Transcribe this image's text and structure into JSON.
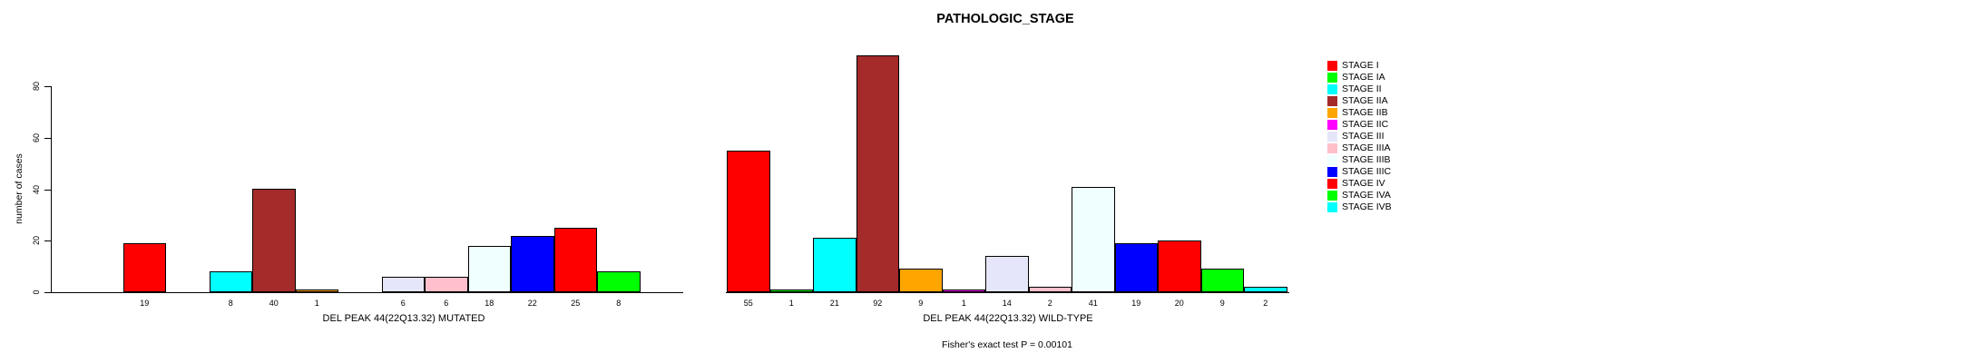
{
  "chart_data": {
    "type": "bar",
    "title": "PATHOLOGIC_STAGE",
    "ylabel": "number of cases",
    "xlabel": "",
    "ylim": [
      0,
      80
    ],
    "yticks": [
      0,
      20,
      40,
      60,
      80
    ],
    "grid": false,
    "legend_position": "right",
    "bar_border_color": "#000000",
    "categories": [
      "STAGE I",
      "STAGE IA",
      "STAGE II",
      "STAGE IIA",
      "STAGE IIB",
      "STAGE IIC",
      "STAGE III",
      "STAGE IIIA",
      "STAGE IIIB",
      "STAGE IIIC",
      "STAGE IV",
      "STAGE IVA",
      "STAGE IVB"
    ],
    "series_colors": [
      "#FF0000",
      "#00FF00",
      "#00FFFF",
      "#A52A2A",
      "#FFA500",
      "#FF00FF",
      "#E6E6FA",
      "#FFC0CB",
      "#F0FFFF",
      "#0000FF",
      "#FF0000",
      "#00FF00",
      "#00FFFF"
    ],
    "groups": [
      {
        "label": "DEL PEAK 44(22Q13.32) MUTATED",
        "values": [
          19,
          0,
          8,
          40,
          1,
          0,
          6,
          6,
          18,
          22,
          25,
          8,
          0
        ]
      },
      {
        "label": "DEL PEAK 44(22Q13.32) WILD-TYPE",
        "values": [
          55,
          1,
          21,
          92,
          9,
          1,
          14,
          2,
          41,
          19,
          20,
          9,
          2
        ]
      }
    ],
    "footnote": "Fisher's exact test P = 0.00101"
  }
}
